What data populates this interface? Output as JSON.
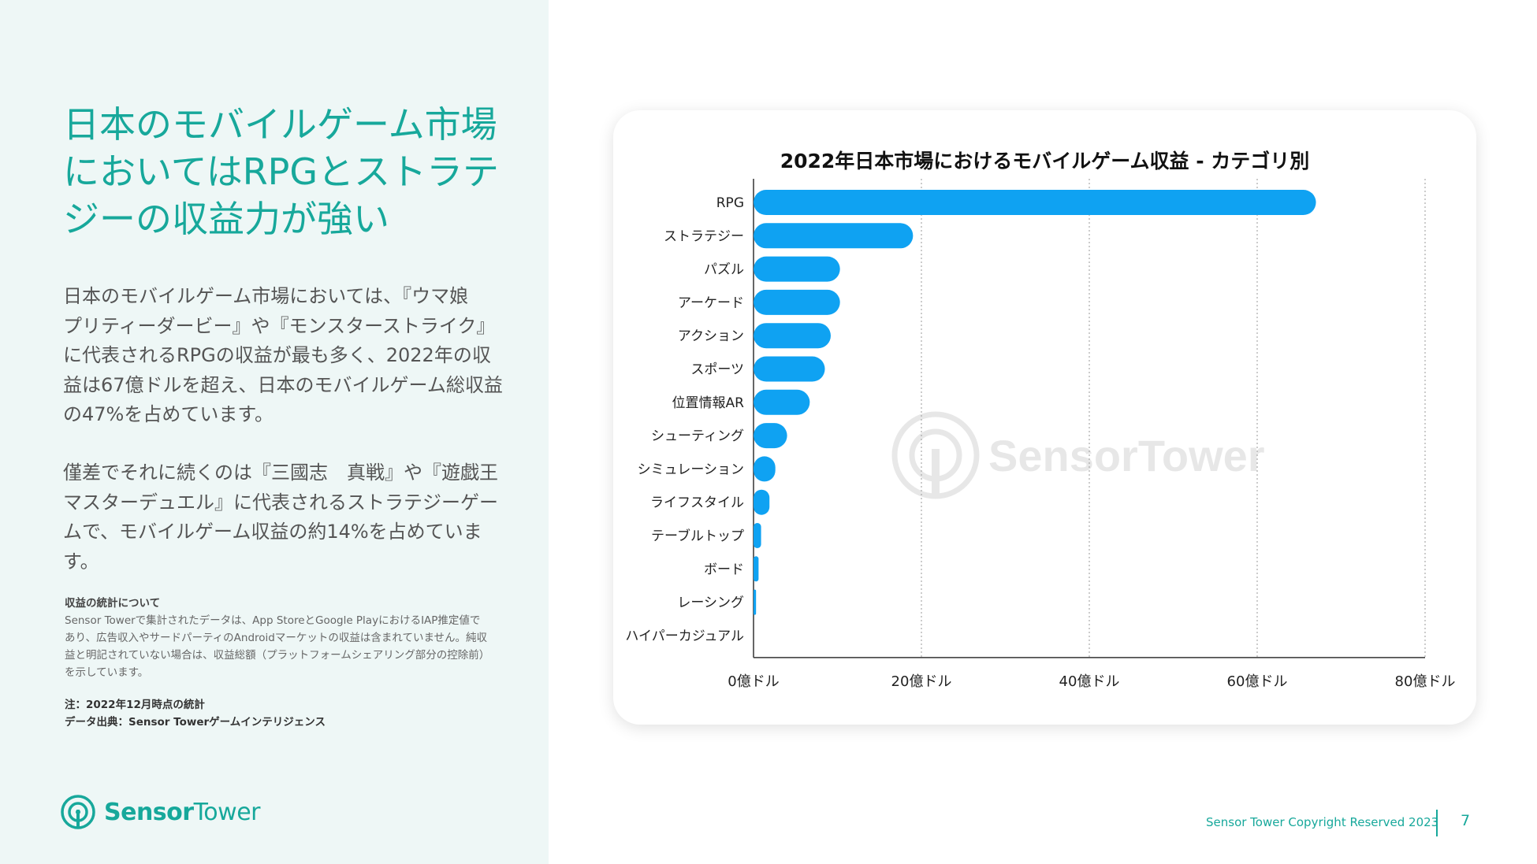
{
  "headline": "日本のモバイルゲーム市場においてはRPGとストラテジーの収益力が強い",
  "paragraphs": [
    "日本のモバイルゲーム市場においては、『ウマ娘　プリティーダービー』や『モンスターストライク』に代表されるRPGの収益が最も多く、2022年の収益は67億ドルを超え、日本のモバイルゲーム総収益の47%を占めています。",
    "僅差でそれに続くのは『三國志　真戦』や『遊戯王　マスターデュエル』に代表されるストラテジーゲームで、モバイルゲーム収益の約14%を占めています。"
  ],
  "notes": {
    "title": "収益の統計について",
    "body": "Sensor Towerで集計されたデータは、App StoreとGoogle PlayにおけるIAP推定値であり、広告収入やサードパーティのAndroidマーケットの収益は含まれていません。純収益と明記されていない場合は、収益総額（プラットフォームシェアリング部分の控除前）を示しています。",
    "date_note": "注：2022年12月時点の統計",
    "source": "データ出典：Sensor Towerゲームインテリジェンス"
  },
  "brand": {
    "name_part1": "Sensor",
    "name_part2": "Tower"
  },
  "watermark": "SensorTower",
  "footer": {
    "copyright": "Sensor Tower Copyright Reserved 2023",
    "page_number": "7"
  },
  "colors": {
    "accent": "#17a89b",
    "bar": "#0fa2f2",
    "left_bg": "#eef7f6"
  },
  "chart_data": {
    "type": "bar",
    "orientation": "horizontal",
    "title": "2022年日本市場におけるモバイルゲーム収益 - カテゴリ別",
    "categories": [
      "RPG",
      "ストラテジー",
      "パズル",
      "アーケード",
      "アクション",
      "スポーツ",
      "位置情報AR",
      "シューティング",
      "シミュレーション",
      "ライフスタイル",
      "テーブルトップ",
      "ボード",
      "レーシング",
      "ハイパーカジュアル"
    ],
    "values": [
      67,
      19,
      10.3,
      10.3,
      9.2,
      8.5,
      6.7,
      4.0,
      2.6,
      1.9,
      0.9,
      0.6,
      0.3,
      0
    ],
    "xlim": [
      0,
      80
    ],
    "x_ticks": [
      0,
      20,
      40,
      60,
      80
    ],
    "x_tick_labels": [
      "0億ドル",
      "20億ドル",
      "40億ドル",
      "60億ドル",
      "80億ドル"
    ],
    "grid": "vertical dotted",
    "legend": "none"
  }
}
